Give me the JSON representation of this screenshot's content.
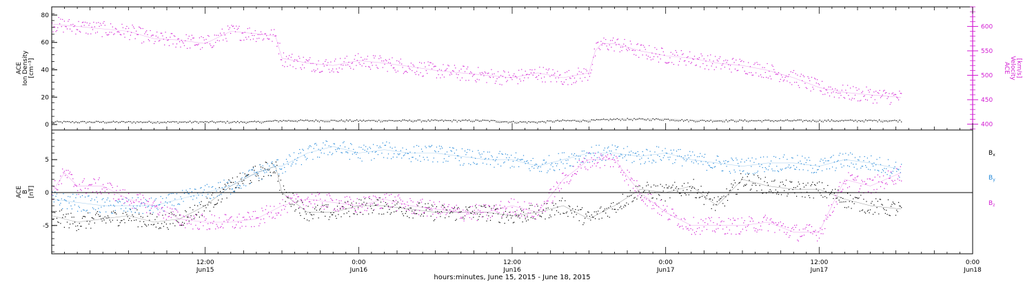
{
  "chart_data": [
    {
      "type": "scatter",
      "panel": "plasma",
      "x_axis": {
        "label": "hours:minutes, June 15, 2015 - June 18, 2015",
        "range_hours": [
          0,
          72
        ],
        "major_ticks": [
          {
            "hour": 12,
            "time": "12:00",
            "day": "Jun15"
          },
          {
            "hour": 24,
            "time": "0:00",
            "day": "Jun16"
          },
          {
            "hour": 36,
            "time": "12:00",
            "day": "Jun16"
          },
          {
            "hour": 48,
            "time": "0:00",
            "day": "Jun17"
          },
          {
            "hour": 60,
            "time": "12:00",
            "day": "Jun17"
          },
          {
            "hour": 72,
            "time": "0:00",
            "day": "Jun18"
          }
        ]
      },
      "left_axis": {
        "label_lines": [
          "ACE",
          "Ion Density",
          "[cm⁻³]"
        ],
        "range": [
          -4,
          86
        ],
        "ticks": [
          0,
          20,
          40,
          60,
          80
        ],
        "color": "#000000"
      },
      "right_axis": {
        "label_lines": [
          "ACE",
          "Velocity",
          "[km/s]"
        ],
        "range": [
          388,
          640
        ],
        "ticks": [
          400,
          450,
          500,
          550,
          600
        ],
        "color": "#d21ad2"
      },
      "series": [
        {
          "name": "Ion Density",
          "axis": "left",
          "color": "#000000",
          "x_hours": [
            0,
            2,
            4,
            6,
            8,
            10,
            12,
            14,
            16,
            18,
            20,
            22,
            24,
            26,
            28,
            30,
            32,
            34,
            36,
            38,
            40,
            42,
            44,
            46,
            48,
            50,
            52,
            54,
            56,
            58,
            60,
            62,
            64,
            66.4
          ],
          "y": [
            2,
            2,
            2,
            2,
            2,
            2,
            2,
            2,
            2,
            3,
            3,
            3,
            3,
            3,
            3,
            3,
            3,
            3,
            2,
            2,
            3,
            3,
            4,
            4,
            4,
            3,
            3,
            3,
            3,
            3,
            3,
            3,
            3,
            3
          ]
        },
        {
          "name": "Velocity",
          "axis": "right",
          "color": "#d21ad2",
          "x_hours": [
            0,
            2,
            4,
            6,
            8,
            10,
            12,
            14,
            16,
            17.5,
            18,
            20,
            22,
            24,
            26,
            28,
            30,
            32,
            34,
            36,
            38,
            40,
            42,
            42.5,
            43,
            44,
            46,
            48,
            50,
            52,
            54,
            56,
            58,
            60,
            62,
            64,
            66.4
          ],
          "y": [
            605,
            600,
            595,
            590,
            575,
            572,
            565,
            590,
            585,
            580,
            535,
            525,
            520,
            530,
            525,
            518,
            510,
            505,
            500,
            495,
            505,
            495,
            505,
            550,
            565,
            565,
            550,
            540,
            535,
            525,
            520,
            510,
            495,
            475,
            465,
            460,
            455
          ]
        }
      ]
    },
    {
      "type": "scatter",
      "panel": "magnetic field",
      "y_axis": {
        "label_lines": [
          "ACE",
          "B",
          "[nT]"
        ],
        "range": [
          -9.3,
          9.5
        ],
        "ticks": [
          -5,
          0,
          5
        ],
        "zero_line": true
      },
      "legend_placement": "right",
      "series": [
        {
          "name": "Bx",
          "color": "#000000",
          "x_hours": [
            0,
            2,
            4,
            6,
            8,
            10,
            12,
            14,
            16,
            17.5,
            18,
            20,
            22,
            24,
            26,
            28,
            30,
            32,
            34,
            36,
            38,
            40,
            42,
            44,
            46,
            48,
            50,
            52,
            54,
            56,
            58,
            60,
            62,
            64,
            66.4
          ],
          "y": [
            -3.5,
            -4.5,
            -4,
            -3.5,
            -4.5,
            -4,
            -2,
            1,
            3,
            4,
            0,
            -3,
            -3,
            -2,
            -2,
            -2.5,
            -3,
            -3,
            -3,
            -3.5,
            -3,
            -2,
            -4,
            -2,
            0.5,
            0,
            1,
            -2,
            2,
            1,
            0.5,
            0.5,
            -1,
            -2,
            -2.5
          ]
        },
        {
          "name": "By",
          "color": "#1f86d8",
          "x_hours": [
            0,
            2,
            4,
            6,
            8,
            10,
            12,
            14,
            16,
            17.5,
            18,
            20,
            22,
            24,
            26,
            28,
            30,
            32,
            34,
            36,
            38,
            40,
            42,
            44,
            46,
            48,
            50,
            52,
            54,
            56,
            58,
            60,
            62,
            64,
            66.4
          ],
          "y": [
            -1,
            -1.5,
            -2,
            -2,
            -2,
            -1,
            0,
            1,
            3,
            4,
            4,
            6,
            7,
            6,
            6.5,
            6,
            6,
            5.5,
            5,
            5,
            4,
            5,
            6,
            6,
            5.5,
            6,
            5,
            4.5,
            4,
            4.5,
            4.5,
            4,
            5,
            4.5,
            3.5
          ]
        },
        {
          "name": "Bz",
          "color": "#d21ad2",
          "x_hours": [
            0,
            1,
            2,
            3,
            4,
            6,
            8,
            10,
            12,
            14,
            16,
            18,
            20,
            22,
            24,
            26,
            28,
            30,
            32,
            34,
            36,
            38,
            40,
            42,
            44,
            46,
            48,
            50,
            52,
            54,
            56,
            58,
            60,
            62,
            64,
            66.4
          ],
          "y": [
            0,
            3,
            1,
            1,
            1,
            -1,
            -2,
            -4,
            -4.5,
            -4.5,
            -4,
            -2,
            -1,
            -1.5,
            -2,
            -1,
            -2,
            -2.5,
            -3,
            -3,
            -2,
            -3,
            2,
            5,
            5,
            0,
            -3,
            -5,
            -5,
            -5,
            -4.5,
            -6,
            -6,
            2,
            1,
            3
          ]
        }
      ]
    }
  ]
}
